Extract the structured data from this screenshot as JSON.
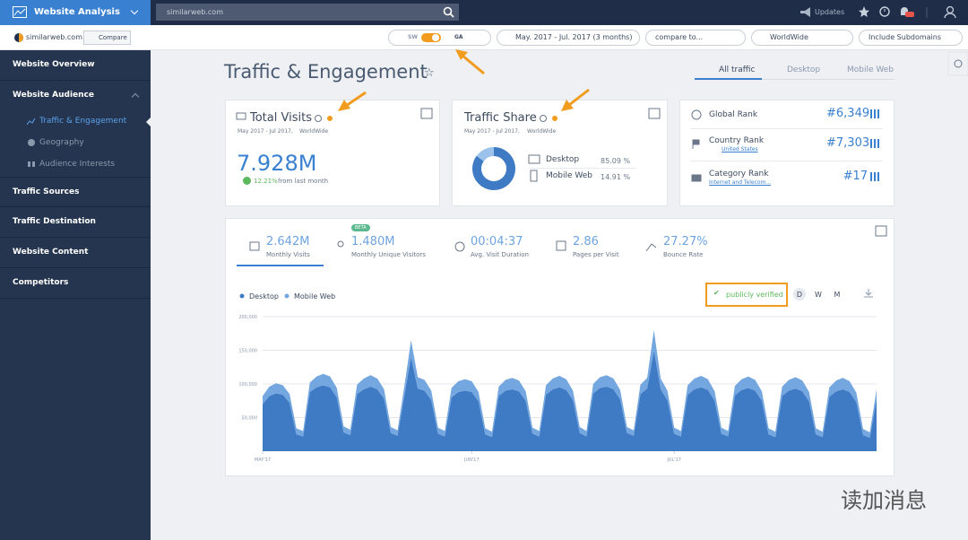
{
  "topbar": {
    "app": "Website Analysis",
    "search": "similarweb.com",
    "updates": "Updates"
  },
  "subbar": {
    "site": "similarweb.com",
    "compare": "Compare",
    "sw": "SW",
    "ga": "GA",
    "date": "May. 2017 - Jul. 2017 (3 months)",
    "compare_to": "compare to...",
    "region": "WorldWide",
    "subdomains": "Include Subdomains"
  },
  "sidebar": {
    "items": [
      "Website Overview",
      "Website Audience",
      "Traffic Sources",
      "Traffic Destination",
      "Website Content",
      "Competitors"
    ],
    "subitems": [
      "Traffic & Engagement",
      "Geography",
      "Audience Interests"
    ]
  },
  "page": {
    "title": "Traffic & Engagement",
    "tabs": [
      "All traffic",
      "Desktop",
      "Mobile Web"
    ]
  },
  "total_visits": {
    "title": "Total Visits",
    "period": "May 2017 - Jul 2017,",
    "region": "WorldWide",
    "value": "7.928M",
    "change": "12.21%",
    "change_note": "from last month"
  },
  "traffic_share": {
    "title": "Traffic Share",
    "period": "May 2017 - Jul 2017,",
    "region": "WorldWide",
    "rows": [
      {
        "label": "Desktop",
        "value": 85.09,
        "value_label": "85.09 %"
      },
      {
        "label": "Mobile Web",
        "value": 14.91,
        "value_label": "14.91 %"
      }
    ]
  },
  "ranks": [
    {
      "label": "Global Rank",
      "value": "#6,349"
    },
    {
      "label": "Country Rank",
      "sub": "United States",
      "value": "#7,303"
    },
    {
      "label": "Category Rank",
      "sub": "Internet and Telecom...",
      "value": "#17"
    }
  ],
  "metrics": [
    {
      "value": "2.642M",
      "label": "Monthly Visits"
    },
    {
      "value": "1.480M",
      "label": "Monthly Unique Visitors",
      "badge": "BETA"
    },
    {
      "value": "00:04:37",
      "label": "Avg. Visit Duration"
    },
    {
      "value": "2.86",
      "label": "Pages per Visit"
    },
    {
      "value": "27.27%",
      "label": "Bounce Rate"
    }
  ],
  "chart_data": {
    "type": "area",
    "verified": "publicly verified",
    "granularity": [
      "D",
      "W",
      "M"
    ],
    "xlim": [
      0,
      91
    ],
    "xticks": [
      {
        "value": 0,
        "label": "MAY'17"
      },
      {
        "value": 31,
        "label": "JUN'17"
      },
      {
        "value": 61,
        "label": "JUL'17"
      }
    ],
    "ylim": [
      0,
      200000
    ],
    "yticks": [
      {
        "value": 50000,
        "label": "50,000"
      },
      {
        "value": 100000,
        "label": "100,000"
      },
      {
        "value": 150000,
        "label": "150,000"
      },
      {
        "value": 200000,
        "label": "200,000"
      }
    ],
    "grid": true,
    "series": [
      {
        "name": "Desktop",
        "color": "#3f7bc4",
        "values": [
          70000,
          82000,
          86000,
          84000,
          72000,
          25000,
          22000,
          88000,
          95000,
          98000,
          95000,
          80000,
          28000,
          24000,
          85000,
          92000,
          96000,
          92000,
          78000,
          27000,
          23000,
          82000,
          140000,
          93000,
          90000,
          76000,
          26000,
          22000,
          80000,
          88000,
          90000,
          88000,
          74000,
          25000,
          21000,
          82000,
          90000,
          92000,
          89000,
          75000,
          26000,
          22000,
          84000,
          92000,
          95000,
          91000,
          76000,
          27000,
          22000,
          86000,
          94000,
          96000,
          92000,
          77000,
          27000,
          23000,
          85000,
          93000,
          150000,
          92000,
          76000,
          26000,
          22000,
          84000,
          92000,
          95000,
          91000,
          75000,
          26000,
          22000,
          83000,
          91000,
          94000,
          90000,
          75000,
          25000,
          21000,
          82000,
          90000,
          93000,
          89000,
          74000,
          25000,
          21000,
          81000,
          89000,
          92000,
          88000,
          73000,
          24000,
          20000,
          78000
        ]
      },
      {
        "name": "Mobile Web",
        "color": "#74a6e0",
        "values": [
          12000,
          14000,
          15000,
          14000,
          13000,
          9000,
          8000,
          14000,
          16000,
          17000,
          16000,
          14000,
          9000,
          8000,
          14000,
          16000,
          17000,
          16000,
          14000,
          9000,
          8000,
          14000,
          25000,
          17000,
          16000,
          14000,
          9000,
          8000,
          14000,
          16000,
          17000,
          16000,
          14000,
          9000,
          8000,
          14000,
          16000,
          17000,
          16000,
          14000,
          9000,
          8000,
          14000,
          16000,
          17000,
          16000,
          14000,
          9000,
          8000,
          14000,
          16000,
          17000,
          16000,
          14000,
          9000,
          8000,
          14000,
          16000,
          30000,
          16000,
          14000,
          9000,
          8000,
          14000,
          16000,
          17000,
          16000,
          14000,
          9000,
          8000,
          14000,
          16000,
          17000,
          16000,
          14000,
          9000,
          8000,
          14000,
          16000,
          17000,
          16000,
          14000,
          9000,
          8000,
          14000,
          16000,
          17000,
          16000,
          14000,
          9000,
          8000,
          14000
        ]
      }
    ]
  },
  "watermark": "读加消息"
}
